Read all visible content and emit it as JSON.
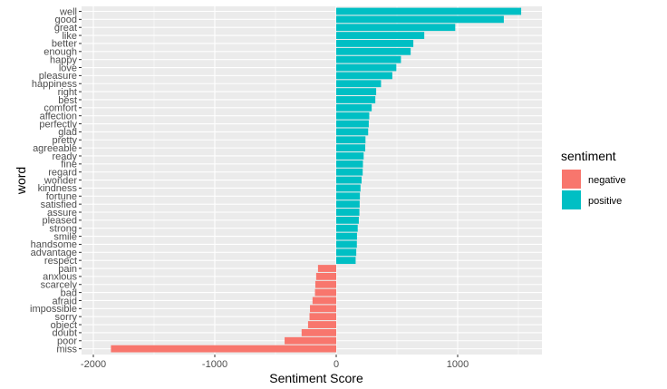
{
  "chart_data": {
    "type": "bar",
    "orientation": "horizontal",
    "xlabel": "Sentiment Score",
    "ylabel": "word",
    "xlim": [
      -2000,
      1700
    ],
    "x_ticks": [
      "-2000",
      "-1000",
      "0",
      "1000"
    ],
    "x_tick_values": [
      -2000,
      -1000,
      0,
      1000
    ],
    "grid": true,
    "legend": {
      "title": "sentiment",
      "placement": "right",
      "entries": [
        {
          "label": "negative",
          "color": "#F8766D"
        },
        {
          "label": "positive",
          "color": "#00BFC4"
        }
      ]
    },
    "colors": {
      "negative": "#F8766D",
      "positive": "#00BFC4"
    },
    "bars": [
      {
        "word": "well",
        "value": 1523,
        "sentiment": "positive"
      },
      {
        "word": "good",
        "value": 1380,
        "sentiment": "positive"
      },
      {
        "word": "great",
        "value": 980,
        "sentiment": "positive"
      },
      {
        "word": "like",
        "value": 725,
        "sentiment": "positive"
      },
      {
        "word": "better",
        "value": 635,
        "sentiment": "positive"
      },
      {
        "word": "enough",
        "value": 613,
        "sentiment": "positive"
      },
      {
        "word": "happy",
        "value": 533,
        "sentiment": "positive"
      },
      {
        "word": "love",
        "value": 495,
        "sentiment": "positive"
      },
      {
        "word": "pleasure",
        "value": 462,
        "sentiment": "positive"
      },
      {
        "word": "happiness",
        "value": 369,
        "sentiment": "positive"
      },
      {
        "word": "right",
        "value": 329,
        "sentiment": "positive"
      },
      {
        "word": "best",
        "value": 322,
        "sentiment": "positive"
      },
      {
        "word": "comfort",
        "value": 292,
        "sentiment": "positive"
      },
      {
        "word": "affection",
        "value": 272,
        "sentiment": "positive"
      },
      {
        "word": "perfectly",
        "value": 268,
        "sentiment": "positive"
      },
      {
        "word": "glad",
        "value": 263,
        "sentiment": "positive"
      },
      {
        "word": "pretty",
        "value": 241,
        "sentiment": "positive"
      },
      {
        "word": "agreeable",
        "value": 239,
        "sentiment": "positive"
      },
      {
        "word": "ready",
        "value": 226,
        "sentiment": "positive"
      },
      {
        "word": "fine",
        "value": 220,
        "sentiment": "positive"
      },
      {
        "word": "regard",
        "value": 218,
        "sentiment": "positive"
      },
      {
        "word": "wonder",
        "value": 209,
        "sentiment": "positive"
      },
      {
        "word": "kindness",
        "value": 200,
        "sentiment": "positive"
      },
      {
        "word": "fortune",
        "value": 195,
        "sentiment": "positive"
      },
      {
        "word": "satisfied",
        "value": 193,
        "sentiment": "positive"
      },
      {
        "word": "assure",
        "value": 191,
        "sentiment": "positive"
      },
      {
        "word": "pleased",
        "value": 186,
        "sentiment": "positive"
      },
      {
        "word": "strong",
        "value": 177,
        "sentiment": "positive"
      },
      {
        "word": "smile",
        "value": 171,
        "sentiment": "positive"
      },
      {
        "word": "handsome",
        "value": 170,
        "sentiment": "positive"
      },
      {
        "word": "advantage",
        "value": 165,
        "sentiment": "positive"
      },
      {
        "word": "respect",
        "value": 160,
        "sentiment": "positive"
      },
      {
        "word": "pain",
        "value": -150,
        "sentiment": "negative"
      },
      {
        "word": "anxious",
        "value": -165,
        "sentiment": "negative"
      },
      {
        "word": "scarcely",
        "value": -172,
        "sentiment": "negative"
      },
      {
        "word": "bad",
        "value": -175,
        "sentiment": "negative"
      },
      {
        "word": "afraid",
        "value": -195,
        "sentiment": "negative"
      },
      {
        "word": "impossible",
        "value": -216,
        "sentiment": "negative"
      },
      {
        "word": "sorry",
        "value": -220,
        "sentiment": "negative"
      },
      {
        "word": "object",
        "value": -232,
        "sentiment": "negative"
      },
      {
        "word": "doubt",
        "value": -285,
        "sentiment": "negative"
      },
      {
        "word": "poor",
        "value": -425,
        "sentiment": "negative"
      },
      {
        "word": "miss",
        "value": -1855,
        "sentiment": "negative"
      }
    ]
  }
}
